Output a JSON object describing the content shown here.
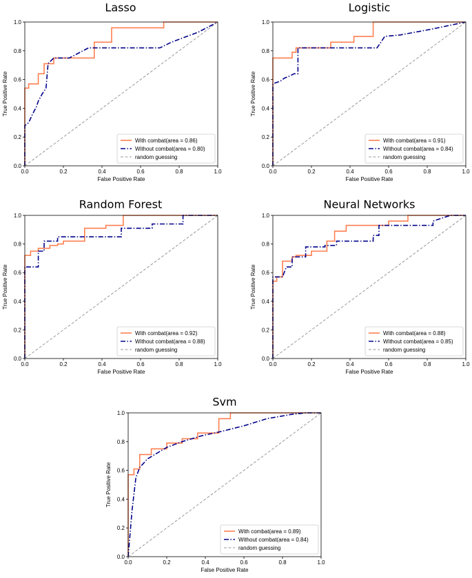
{
  "colors": {
    "with_combat": "#FF7F50",
    "without_combat": "#00008B",
    "random": "#999999",
    "axis": "#000000"
  },
  "chart_data": [
    {
      "type": "line",
      "title": "Lasso",
      "xlabel": "False Positive Rate",
      "ylabel": "True Positive Rate",
      "xlim": [
        0,
        1
      ],
      "ylim": [
        0,
        1
      ],
      "xticks": [
        "0.0",
        "0.2",
        "0.4",
        "0.6",
        "0.8",
        "1.0"
      ],
      "yticks": [
        "0.0",
        "0.2",
        "0.4",
        "0.6",
        "0.8",
        "1.0"
      ],
      "legend_position": "lower-right",
      "series": [
        {
          "name": "With combat(area = 0.86)",
          "style": "solid",
          "x": [
            0,
            0,
            0.02,
            0.02,
            0.07,
            0.07,
            0.1,
            0.1,
            0.15,
            0.15,
            0.36,
            0.36,
            0.45,
            0.45,
            0.72,
            0.72,
            0.78,
            0.78,
            1
          ],
          "y": [
            0,
            0.54,
            0.54,
            0.57,
            0.57,
            0.64,
            0.64,
            0.71,
            0.71,
            0.75,
            0.75,
            0.86,
            0.86,
            0.96,
            0.96,
            1,
            1,
            1,
            1
          ]
        },
        {
          "name": "Without combat(area = 0.80)",
          "style": "dashdot",
          "x": [
            0,
            0,
            0.02,
            0.04,
            0.06,
            0.07,
            0.09,
            0.11,
            0.12,
            0.12,
            0.15,
            0.23,
            0.33,
            0.37,
            0.57,
            0.7,
            0.76,
            0.82,
            0.9,
            1
          ],
          "y": [
            0,
            0.28,
            0.3,
            0.36,
            0.41,
            0.45,
            0.5,
            0.54,
            0.7,
            0.71,
            0.75,
            0.75,
            0.82,
            0.82,
            0.82,
            0.82,
            0.86,
            0.89,
            0.93,
            1
          ]
        },
        {
          "name": "random guessing",
          "style": "dashed",
          "x": [
            0,
            1
          ],
          "y": [
            0,
            1
          ]
        }
      ]
    },
    {
      "type": "line",
      "title": "Logistic",
      "xlabel": "False Positive Rate",
      "ylabel": "True Positive Rate",
      "xlim": [
        0,
        1
      ],
      "ylim": [
        0,
        1
      ],
      "xticks": [
        "0.0",
        "0.2",
        "0.4",
        "0.6",
        "0.8",
        "1.0"
      ],
      "yticks": [
        "0.0",
        "0.2",
        "0.4",
        "0.6",
        "0.8",
        "1.0"
      ],
      "legend_position": "lower-right",
      "series": [
        {
          "name": "With combat(area = 0.91)",
          "style": "solid",
          "x": [
            0,
            0,
            0.1,
            0.1,
            0.12,
            0.12,
            0.3,
            0.3,
            0.42,
            0.42,
            0.52,
            0.52,
            1
          ],
          "y": [
            0,
            0.75,
            0.75,
            0.79,
            0.79,
            0.82,
            0.82,
            0.86,
            0.86,
            0.9,
            0.9,
            1,
            1
          ]
        },
        {
          "name": "Without combat(area = 0.84)",
          "style": "dashdot",
          "x": [
            0,
            0,
            0.04,
            0.06,
            0.08,
            0.11,
            0.13,
            0.13,
            0.2,
            0.5,
            0.54,
            0.56,
            0.58,
            0.66,
            0.82,
            1
          ],
          "y": [
            0,
            0.57,
            0.59,
            0.61,
            0.62,
            0.64,
            0.64,
            0.82,
            0.82,
            0.82,
            0.82,
            0.86,
            0.9,
            0.91,
            0.95,
            1
          ]
        },
        {
          "name": "random guessing",
          "style": "dashed",
          "x": [
            0,
            1
          ],
          "y": [
            0,
            1
          ]
        }
      ]
    },
    {
      "type": "line",
      "title": "Random Forest",
      "xlabel": "False Positive Rate",
      "ylabel": "True Positive Rate",
      "xlim": [
        0,
        1
      ],
      "ylim": [
        0,
        1
      ],
      "xticks": [
        "0.0",
        "0.2",
        "0.4",
        "0.6",
        "0.8",
        "1.0"
      ],
      "yticks": [
        "0.0",
        "0.2",
        "0.4",
        "0.6",
        "0.8",
        "1.0"
      ],
      "legend_position": "lower-right",
      "series": [
        {
          "name": "With combat(area = 0.92)",
          "style": "solid",
          "x": [
            0,
            0,
            0.03,
            0.03,
            0.07,
            0.07,
            0.13,
            0.13,
            0.17,
            0.17,
            0.2,
            0.2,
            0.31,
            0.31,
            0.42,
            0.42,
            0.51,
            0.51,
            0.76,
            1
          ],
          "y": [
            0,
            0.72,
            0.72,
            0.75,
            0.75,
            0.77,
            0.77,
            0.79,
            0.79,
            0.8,
            0.8,
            0.82,
            0.82,
            0.91,
            0.91,
            0.93,
            0.93,
            1,
            1,
            1
          ]
        },
        {
          "name": "Without combat(area = 0.88)",
          "style": "dashdot",
          "x": [
            0,
            0,
            0.07,
            0.07,
            0.1,
            0.1,
            0.13,
            0.13,
            0.17,
            0.17,
            0.5,
            0.5,
            0.66,
            0.66,
            0.82,
            0.82,
            0.86,
            0.86,
            1
          ],
          "y": [
            0,
            0.64,
            0.64,
            0.75,
            0.75,
            0.82,
            0.82,
            0.82,
            0.82,
            0.85,
            0.85,
            0.91,
            0.91,
            0.94,
            0.94,
            1,
            1,
            1,
            1
          ]
        },
        {
          "name": "random guessing",
          "style": "dashed",
          "x": [
            0,
            1
          ],
          "y": [
            0,
            1
          ]
        }
      ]
    },
    {
      "type": "line",
      "title": "Neural Networks",
      "xlabel": "False Positive Rate",
      "ylabel": "True Positive Rate",
      "xlim": [
        0,
        1
      ],
      "ylim": [
        0,
        1
      ],
      "xticks": [
        "0.0",
        "0.2",
        "0.4",
        "0.6",
        "0.8",
        "1.0"
      ],
      "yticks": [
        "0.0",
        "0.2",
        "0.4",
        "0.6",
        "0.8",
        "1.0"
      ],
      "legend_position": "lower-right",
      "series": [
        {
          "name": "With combat(area = 0.88)",
          "style": "solid",
          "x": [
            0,
            0,
            0.02,
            0.02,
            0.05,
            0.05,
            0.1,
            0.1,
            0.12,
            0.12,
            0.2,
            0.2,
            0.28,
            0.28,
            0.32,
            0.32,
            0.38,
            0.38,
            0.6,
            0.6,
            0.7,
            0.7,
            0.95,
            1
          ],
          "y": [
            0,
            0.54,
            0.54,
            0.57,
            0.57,
            0.68,
            0.68,
            0.71,
            0.71,
            0.72,
            0.72,
            0.75,
            0.75,
            0.82,
            0.82,
            0.89,
            0.89,
            0.93,
            0.93,
            0.96,
            0.96,
            1,
            1,
            1
          ]
        },
        {
          "name": "Without combat(area = 0.85)",
          "style": "dashdot",
          "x": [
            0,
            0,
            0.05,
            0.07,
            0.1,
            0.1,
            0.17,
            0.17,
            0.27,
            0.27,
            0.33,
            0.33,
            0.52,
            0.52,
            0.55,
            0.55,
            0.83,
            0.83,
            0.92,
            1
          ],
          "y": [
            0,
            0.57,
            0.57,
            0.64,
            0.64,
            0.71,
            0.71,
            0.78,
            0.78,
            0.79,
            0.79,
            0.82,
            0.82,
            0.86,
            0.86,
            0.93,
            0.93,
            0.96,
            1,
            1
          ]
        },
        {
          "name": "random guessing",
          "style": "dashed",
          "x": [
            0,
            1
          ],
          "y": [
            0,
            1
          ]
        }
      ]
    },
    {
      "type": "line",
      "title": "Svm",
      "xlabel": "False Positive Rate",
      "ylabel": "True Positive Rate",
      "xlim": [
        0,
        1
      ],
      "ylim": [
        0,
        1
      ],
      "xticks": [
        "0.0",
        "0.2",
        "0.4",
        "0.6",
        "0.8",
        "1.0"
      ],
      "yticks": [
        "0.0",
        "0.2",
        "0.4",
        "0.6",
        "0.8",
        "1.0"
      ],
      "legend_position": "lower-right",
      "series": [
        {
          "name": "With combat(area = 0.89)",
          "style": "solid",
          "x": [
            0,
            0,
            0.03,
            0.03,
            0.06,
            0.06,
            0.12,
            0.12,
            0.2,
            0.2,
            0.28,
            0.28,
            0.36,
            0.36,
            0.47,
            0.47,
            0.53,
            0.53,
            1
          ],
          "y": [
            0,
            0.57,
            0.57,
            0.61,
            0.61,
            0.71,
            0.71,
            0.75,
            0.75,
            0.79,
            0.79,
            0.82,
            0.82,
            0.86,
            0.86,
            0.96,
            0.96,
            1,
            1
          ]
        },
        {
          "name": "Without combat(area = 0.84)",
          "style": "dashdot",
          "x": [
            0,
            0.02,
            0.04,
            0.06,
            0.1,
            0.15,
            0.2,
            0.28,
            0.38,
            0.48,
            0.6,
            0.72,
            0.85,
            0.92,
            1
          ],
          "y": [
            0,
            0.32,
            0.55,
            0.62,
            0.68,
            0.72,
            0.76,
            0.8,
            0.84,
            0.87,
            0.91,
            0.96,
            0.99,
            1,
            1
          ]
        },
        {
          "name": "random guessing",
          "style": "dashed",
          "x": [
            0,
            1
          ],
          "y": [
            0,
            1
          ]
        }
      ]
    }
  ]
}
